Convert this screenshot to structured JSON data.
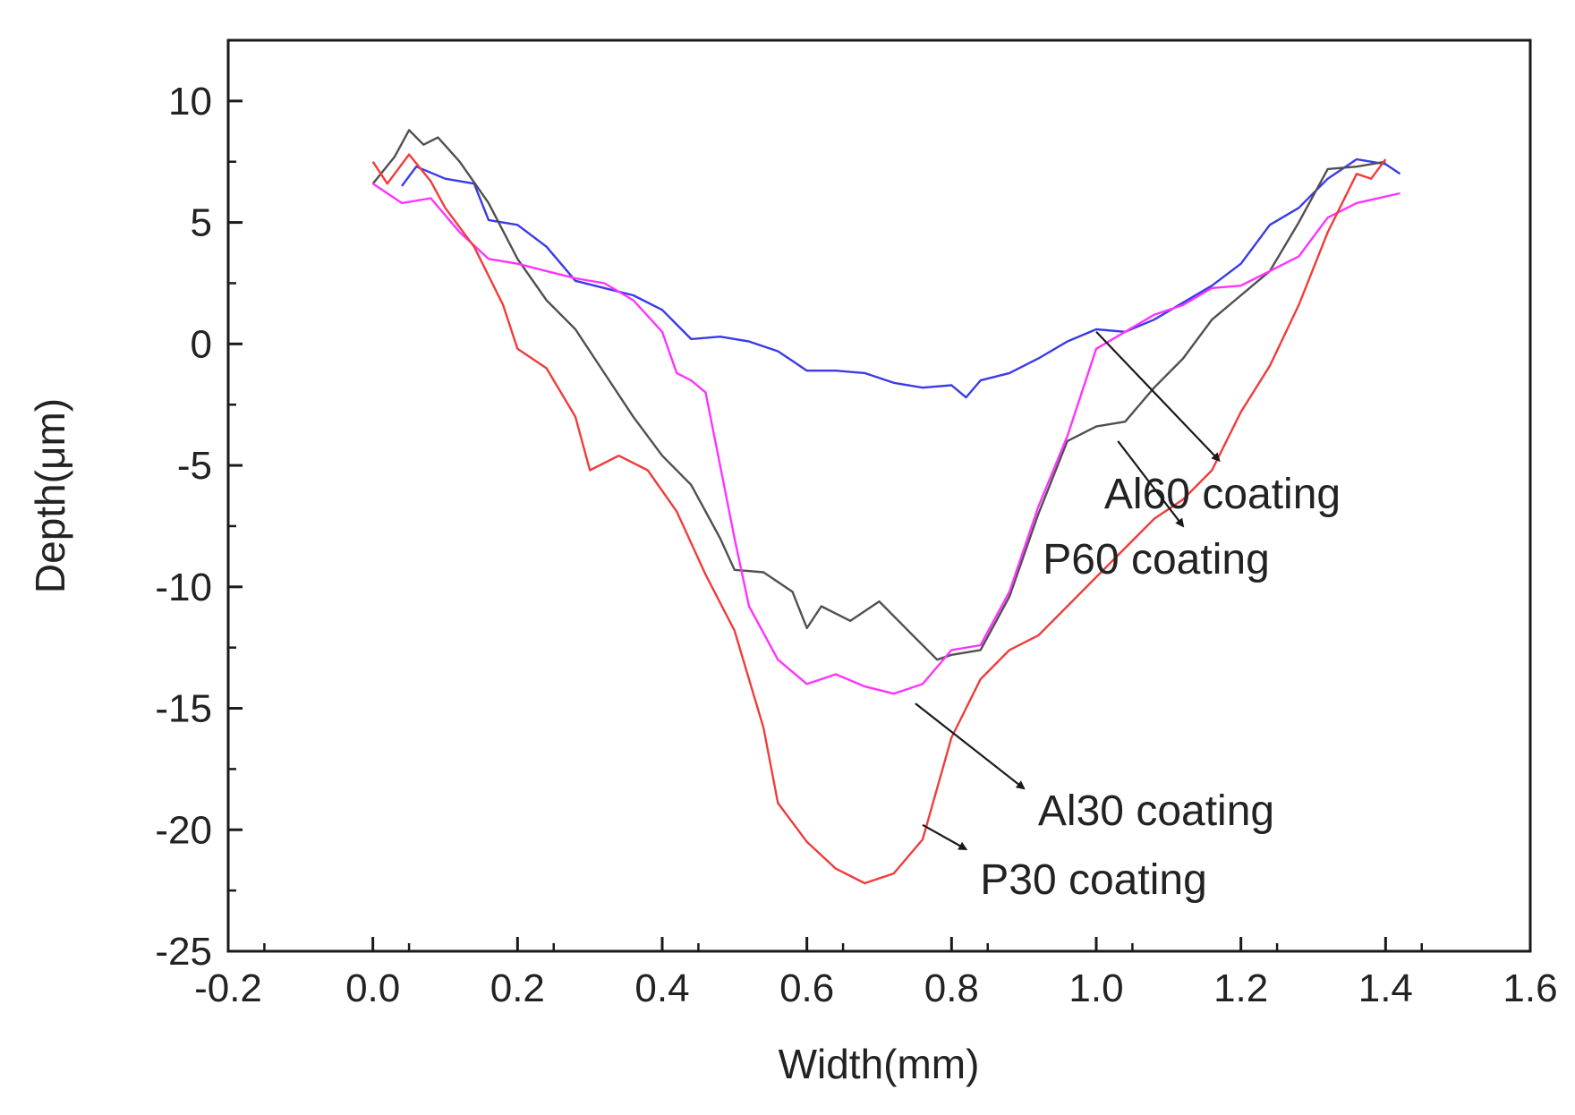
{
  "chart_data": {
    "type": "line",
    "xlabel": "Width(mm)",
    "ylabel": "Depth(μm)",
    "xlim": [
      -0.2,
      1.6
    ],
    "ylim": [
      -25,
      12.5
    ],
    "x_ticks": [
      "-0.2",
      "0.0",
      "0.2",
      "0.4",
      "0.6",
      "0.8",
      "1.0",
      "1.2",
      "1.4",
      "1.6"
    ],
    "y_ticks": [
      "10",
      "5",
      "0",
      "-5",
      "-10",
      "-15",
      "-20",
      "-25"
    ],
    "grid": false,
    "legend": "none",
    "series": [
      {
        "name": "Al60 coating",
        "color": "#3a3ae8",
        "points": [
          [
            0.04,
            6.5
          ],
          [
            0.06,
            7.3
          ],
          [
            0.1,
            6.8
          ],
          [
            0.14,
            6.6
          ],
          [
            0.16,
            5.1
          ],
          [
            0.2,
            4.9
          ],
          [
            0.24,
            4.0
          ],
          [
            0.28,
            2.6
          ],
          [
            0.32,
            2.3
          ],
          [
            0.36,
            2.0
          ],
          [
            0.4,
            1.4
          ],
          [
            0.44,
            0.2
          ],
          [
            0.48,
            0.3
          ],
          [
            0.52,
            0.1
          ],
          [
            0.56,
            -0.3
          ],
          [
            0.6,
            -1.1
          ],
          [
            0.64,
            -1.1
          ],
          [
            0.68,
            -1.2
          ],
          [
            0.72,
            -1.6
          ],
          [
            0.76,
            -1.8
          ],
          [
            0.8,
            -1.7
          ],
          [
            0.82,
            -2.2
          ],
          [
            0.84,
            -1.5
          ],
          [
            0.88,
            -1.2
          ],
          [
            0.92,
            -0.6
          ],
          [
            0.96,
            0.1
          ],
          [
            1.0,
            0.6
          ],
          [
            1.04,
            0.5
          ],
          [
            1.08,
            1.0
          ],
          [
            1.12,
            1.7
          ],
          [
            1.16,
            2.4
          ],
          [
            1.2,
            3.3
          ],
          [
            1.24,
            4.9
          ],
          [
            1.28,
            5.6
          ],
          [
            1.32,
            6.8
          ],
          [
            1.36,
            7.6
          ],
          [
            1.4,
            7.4
          ],
          [
            1.42,
            7.0
          ]
        ]
      },
      {
        "name": "P60 coating",
        "color": "#505050",
        "points": [
          [
            0.0,
            6.6
          ],
          [
            0.03,
            7.7
          ],
          [
            0.05,
            8.8
          ],
          [
            0.07,
            8.2
          ],
          [
            0.09,
            8.5
          ],
          [
            0.12,
            7.5
          ],
          [
            0.16,
            5.8
          ],
          [
            0.2,
            3.5
          ],
          [
            0.24,
            1.8
          ],
          [
            0.28,
            0.6
          ],
          [
            0.32,
            -1.2
          ],
          [
            0.36,
            -3.0
          ],
          [
            0.4,
            -4.6
          ],
          [
            0.44,
            -5.8
          ],
          [
            0.48,
            -8.0
          ],
          [
            0.5,
            -9.3
          ],
          [
            0.54,
            -9.4
          ],
          [
            0.58,
            -10.2
          ],
          [
            0.6,
            -11.7
          ],
          [
            0.62,
            -10.8
          ],
          [
            0.66,
            -11.4
          ],
          [
            0.7,
            -10.6
          ],
          [
            0.74,
            -11.8
          ],
          [
            0.78,
            -13.0
          ],
          [
            0.8,
            -12.8
          ],
          [
            0.84,
            -12.6
          ],
          [
            0.88,
            -10.4
          ],
          [
            0.92,
            -7.0
          ],
          [
            0.96,
            -4.0
          ],
          [
            1.0,
            -3.4
          ],
          [
            1.04,
            -3.2
          ],
          [
            1.08,
            -1.8
          ],
          [
            1.12,
            -0.6
          ],
          [
            1.16,
            1.0
          ],
          [
            1.2,
            2.0
          ],
          [
            1.24,
            3.0
          ],
          [
            1.28,
            5.0
          ],
          [
            1.32,
            7.2
          ],
          [
            1.36,
            7.3
          ],
          [
            1.4,
            7.5
          ]
        ]
      },
      {
        "name": "Al30 coating",
        "color": "#ff33ff",
        "points": [
          [
            0.0,
            6.6
          ],
          [
            0.04,
            5.8
          ],
          [
            0.08,
            6.0
          ],
          [
            0.12,
            4.6
          ],
          [
            0.16,
            3.5
          ],
          [
            0.2,
            3.3
          ],
          [
            0.24,
            3.0
          ],
          [
            0.28,
            2.7
          ],
          [
            0.32,
            2.5
          ],
          [
            0.36,
            1.8
          ],
          [
            0.4,
            0.5
          ],
          [
            0.42,
            -1.2
          ],
          [
            0.44,
            -1.5
          ],
          [
            0.46,
            -2.0
          ],
          [
            0.48,
            -5.0
          ],
          [
            0.5,
            -8.0
          ],
          [
            0.52,
            -10.8
          ],
          [
            0.56,
            -13.0
          ],
          [
            0.6,
            -14.0
          ],
          [
            0.64,
            -13.6
          ],
          [
            0.68,
            -14.1
          ],
          [
            0.72,
            -14.4
          ],
          [
            0.76,
            -14.0
          ],
          [
            0.8,
            -12.6
          ],
          [
            0.84,
            -12.4
          ],
          [
            0.88,
            -10.2
          ],
          [
            0.92,
            -6.7
          ],
          [
            0.96,
            -3.8
          ],
          [
            1.0,
            -0.2
          ],
          [
            1.04,
            0.5
          ],
          [
            1.08,
            1.2
          ],
          [
            1.12,
            1.6
          ],
          [
            1.16,
            2.3
          ],
          [
            1.2,
            2.4
          ],
          [
            1.24,
            3.0
          ],
          [
            1.28,
            3.6
          ],
          [
            1.32,
            5.2
          ],
          [
            1.36,
            5.8
          ],
          [
            1.42,
            6.2
          ]
        ]
      },
      {
        "name": "P30 coating",
        "color": "#f03c3c",
        "points": [
          [
            0.0,
            7.5
          ],
          [
            0.02,
            6.6
          ],
          [
            0.05,
            7.8
          ],
          [
            0.08,
            6.7
          ],
          [
            0.1,
            5.6
          ],
          [
            0.14,
            4.0
          ],
          [
            0.18,
            1.6
          ],
          [
            0.2,
            -0.2
          ],
          [
            0.24,
            -1.0
          ],
          [
            0.28,
            -3.0
          ],
          [
            0.3,
            -5.2
          ],
          [
            0.34,
            -4.6
          ],
          [
            0.38,
            -5.2
          ],
          [
            0.42,
            -6.9
          ],
          [
            0.46,
            -9.5
          ],
          [
            0.5,
            -11.8
          ],
          [
            0.54,
            -15.8
          ],
          [
            0.56,
            -18.9
          ],
          [
            0.6,
            -20.5
          ],
          [
            0.64,
            -21.6
          ],
          [
            0.68,
            -22.2
          ],
          [
            0.72,
            -21.8
          ],
          [
            0.76,
            -20.4
          ],
          [
            0.8,
            -16.2
          ],
          [
            0.84,
            -13.8
          ],
          [
            0.88,
            -12.6
          ],
          [
            0.92,
            -12.0
          ],
          [
            0.96,
            -10.8
          ],
          [
            1.0,
            -9.6
          ],
          [
            1.04,
            -8.4
          ],
          [
            1.08,
            -7.2
          ],
          [
            1.12,
            -6.4
          ],
          [
            1.16,
            -5.2
          ],
          [
            1.2,
            -2.8
          ],
          [
            1.24,
            -0.9
          ],
          [
            1.28,
            1.6
          ],
          [
            1.32,
            4.6
          ],
          [
            1.36,
            7.0
          ],
          [
            1.38,
            6.8
          ],
          [
            1.4,
            7.6
          ]
        ]
      }
    ],
    "annotations": [
      {
        "label": "Al60 coating",
        "series": "Al60 coating"
      },
      {
        "label": "P60 coating",
        "series": "P60 coating"
      },
      {
        "label": "Al30 coating",
        "series": "Al30 coating"
      },
      {
        "label": "P30 coating",
        "series": "P30 coating"
      }
    ]
  }
}
